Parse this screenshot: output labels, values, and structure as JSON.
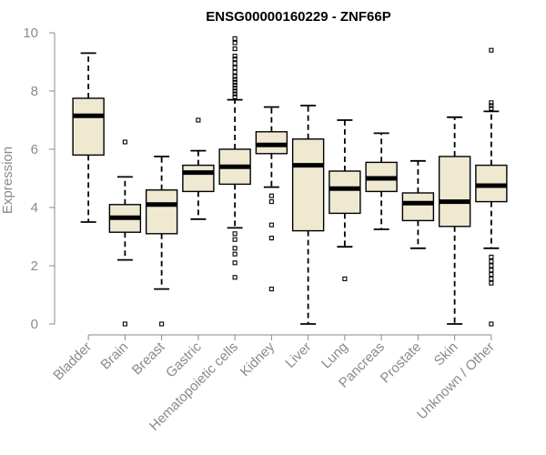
{
  "chart_data": {
    "type": "boxplot",
    "title": "ENSG00000160229 - ZNF66P",
    "ylabel": "Expression",
    "xlabel": "",
    "ylim": [
      0,
      10
    ],
    "yticks": [
      0,
      2,
      4,
      6,
      8,
      10
    ],
    "grid": false,
    "colors": {
      "box_fill": "#efe9d2",
      "box_stroke": "#000000",
      "axis": "#8a8a8a"
    },
    "categories": [
      "Bladder",
      "Brain",
      "Breast",
      "Gastric",
      "Hematopoietic cells",
      "Kidney",
      "Liver",
      "Lung",
      "Pancreas",
      "Prostate",
      "Skin",
      "Unknown / Other"
    ],
    "boxes": [
      {
        "category": "Bladder",
        "whisker_low": 3.5,
        "q1": 5.8,
        "median": 7.15,
        "q3": 7.75,
        "whisker_high": 9.3,
        "outliers": []
      },
      {
        "category": "Brain",
        "whisker_low": 2.2,
        "q1": 3.15,
        "median": 3.65,
        "q3": 4.1,
        "whisker_high": 5.05,
        "outliers": [
          6.25,
          0.0
        ]
      },
      {
        "category": "Breast",
        "whisker_low": 1.2,
        "q1": 3.1,
        "median": 4.1,
        "q3": 4.6,
        "whisker_high": 5.75,
        "outliers": [
          0.0
        ]
      },
      {
        "category": "Gastric",
        "whisker_low": 3.6,
        "q1": 4.55,
        "median": 5.2,
        "q3": 5.45,
        "whisker_high": 5.95,
        "outliers": [
          7.0
        ]
      },
      {
        "category": "Hematopoietic cells",
        "whisker_low": 3.3,
        "q1": 4.8,
        "median": 5.4,
        "q3": 6.0,
        "whisker_high": 7.7,
        "outliers": [
          9.8,
          9.65,
          9.45,
          9.2,
          9.1,
          8.95,
          8.8,
          8.65,
          8.5,
          8.4,
          8.3,
          8.2,
          8.1,
          8.0,
          7.9,
          7.8,
          3.1,
          2.9,
          2.6,
          2.4,
          2.1,
          1.6
        ]
      },
      {
        "category": "Kidney",
        "whisker_low": 4.7,
        "q1": 5.85,
        "median": 6.15,
        "q3": 6.6,
        "whisker_high": 7.45,
        "outliers": [
          4.4,
          4.2,
          3.4,
          2.95,
          1.2
        ]
      },
      {
        "category": "Liver",
        "whisker_low": 0.0,
        "q1": 3.2,
        "median": 5.45,
        "q3": 6.35,
        "whisker_high": 7.5,
        "outliers": []
      },
      {
        "category": "Lung",
        "whisker_low": 2.65,
        "q1": 3.8,
        "median": 4.65,
        "q3": 5.25,
        "whisker_high": 7.0,
        "outliers": [
          1.55
        ]
      },
      {
        "category": "Pancreas",
        "whisker_low": 3.25,
        "q1": 4.55,
        "median": 5.0,
        "q3": 5.55,
        "whisker_high": 6.55,
        "outliers": []
      },
      {
        "category": "Prostate",
        "whisker_low": 2.6,
        "q1": 3.55,
        "median": 4.15,
        "q3": 4.5,
        "whisker_high": 5.6,
        "outliers": []
      },
      {
        "category": "Skin",
        "whisker_low": 0.0,
        "q1": 3.35,
        "median": 4.2,
        "q3": 5.75,
        "whisker_high": 7.1,
        "outliers": []
      },
      {
        "category": "Unknown / Other",
        "whisker_low": 2.6,
        "q1": 4.2,
        "median": 4.75,
        "q3": 5.45,
        "whisker_high": 7.3,
        "outliers": [
          9.4,
          7.6,
          7.5,
          7.4,
          2.3,
          2.15,
          2.0,
          1.85,
          1.7,
          1.55,
          1.4,
          0.0
        ]
      }
    ]
  }
}
